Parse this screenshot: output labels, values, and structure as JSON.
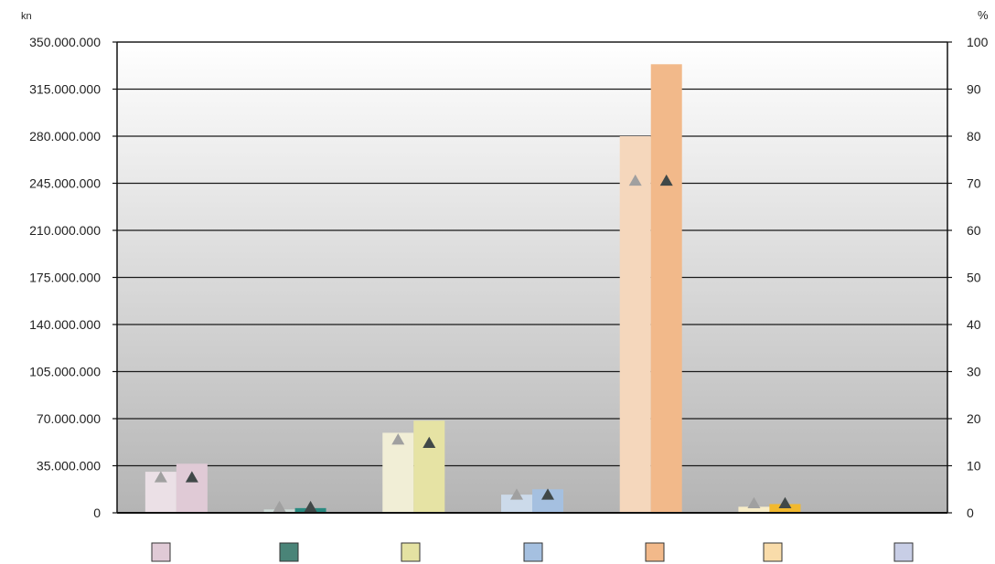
{
  "chart_data": {
    "type": "bar",
    "left_unit": "kn",
    "right_unit": "%",
    "y_left": {
      "min": 0,
      "max": 350000000,
      "step": 35000000,
      "tick_labels": [
        "0",
        "35.000.000",
        "70.000.000",
        "105.000.000",
        "140.000.000",
        "175.000.000",
        "210.000.000",
        "245.000.000",
        "280.000.000",
        "315.000.000",
        "350.000.000"
      ]
    },
    "y_right": {
      "min": 0,
      "max": 100,
      "step": 10,
      "tick_labels": [
        "0",
        "10",
        "20",
        "30",
        "40",
        "50",
        "60",
        "70",
        "80",
        "90",
        "100"
      ]
    },
    "grid": true,
    "category_count": 7,
    "bars": [
      {
        "light": 30500000,
        "dark": 36500000,
        "pct_light": 7.5,
        "pct_dark": 7.5,
        "light_color": "#ebe0e6",
        "dark_color": "#e0cad6"
      },
      {
        "light": 2500000,
        "dark": 3500000,
        "pct_light": 1.2,
        "pct_dark": 1.2,
        "light_color": "#cfdcd8",
        "dark_color": "#2a8a80"
      },
      {
        "light": 59500000,
        "dark": 68500000,
        "pct_light": 15.5,
        "pct_dark": 14.8,
        "light_color": "#f1eed6",
        "dark_color": "#e6e3a4"
      },
      {
        "light": 13500000,
        "dark": 17500000,
        "pct_light": 3.8,
        "pct_dark": 3.8,
        "light_color": "#ccdaea",
        "dark_color": "#a5c0e0"
      },
      {
        "light": 280000000,
        "dark": 333500000,
        "pct_light": 70.5,
        "pct_dark": 70.5,
        "light_color": "#f5d7bc",
        "dark_color": "#f2b98a"
      },
      {
        "light": 4500000,
        "dark": 6500000,
        "pct_light": 2.0,
        "pct_dark": 2.0,
        "light_color": "#f8edc8",
        "dark_color": "#f2b92e"
      },
      {
        "light": 0,
        "dark": 0,
        "pct_light": null,
        "pct_dark": null,
        "light_color": "#e6e6ee",
        "dark_color": "#c8cee6"
      }
    ],
    "legend_swatches": [
      "#e0cad6",
      "#4a8478",
      "#e4e2a2",
      "#a5c0e0",
      "#f2b98a",
      "#f9dcaa",
      "#c8cee6"
    ],
    "marker_colors": {
      "light": "#a0a0a0",
      "dark": "#404848"
    },
    "background_gradient": [
      "#ffffff",
      "#b4b4b4"
    ]
  }
}
